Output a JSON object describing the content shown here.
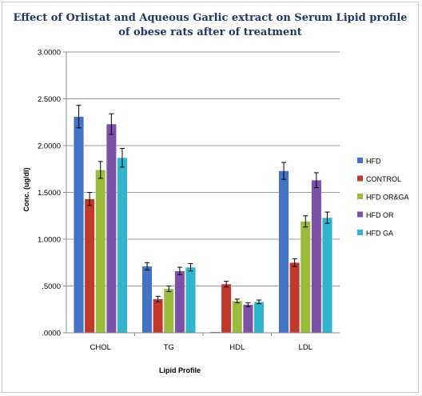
{
  "chart_data": {
    "type": "bar",
    "title_line1": "Effect of Orlistat and Aqueous Garlic extract on Serum Lipid profile",
    "title_line2": "of obese rats after of treatment",
    "xlabel": "Lipid Profile",
    "ylabel": "Conc. (ug/dl)",
    "categories": [
      "CHOL",
      "TG",
      "HDL",
      "LDL"
    ],
    "ylim": [
      0,
      3
    ],
    "yticks": [
      {
        "value": 0,
        "label": ".0000"
      },
      {
        "value": 0.5,
        "label": ".5000"
      },
      {
        "value": 1.0,
        "label": "1.0000"
      },
      {
        "value": 1.5,
        "label": "1.5000"
      },
      {
        "value": 2.0,
        "label": "2.0000"
      },
      {
        "value": 2.5,
        "label": "2.5000"
      },
      {
        "value": 3.0,
        "label": "3.0000"
      }
    ],
    "grid": true,
    "legend_position": "right",
    "series": [
      {
        "name": "HFD",
        "color": "#4472c4",
        "values": [
          2.31,
          0.71,
          0.01,
          1.73
        ],
        "errors": [
          0.12,
          0.04,
          0.0,
          0.09
        ]
      },
      {
        "name": "CONTROL",
        "color": "#c0392b",
        "values": [
          1.43,
          0.36,
          0.52,
          0.75
        ],
        "errors": [
          0.07,
          0.03,
          0.03,
          0.04
        ]
      },
      {
        "name": "HFD OR&GA",
        "color": "#9bbb3b",
        "values": [
          1.74,
          0.47,
          0.34,
          1.19
        ],
        "errors": [
          0.09,
          0.03,
          0.02,
          0.06
        ]
      },
      {
        "name": "HFD OR",
        "color": "#7b52a8",
        "values": [
          2.23,
          0.66,
          0.3,
          1.63
        ],
        "errors": [
          0.11,
          0.04,
          0.02,
          0.08
        ]
      },
      {
        "name": "HFD GA",
        "color": "#31b5cf",
        "values": [
          1.87,
          0.7,
          0.33,
          1.23
        ],
        "errors": [
          0.1,
          0.04,
          0.02,
          0.06
        ]
      }
    ]
  }
}
